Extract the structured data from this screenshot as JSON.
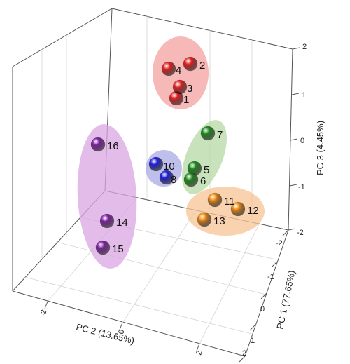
{
  "chart_data": {
    "type": "scatter",
    "projection": "3d",
    "axes": {
      "x": {
        "label": "PC 2 (13.65%)",
        "ticks": [
          "-2",
          "0",
          "2"
        ]
      },
      "y": {
        "label": "PC 1 (77.65%)",
        "ticks": [
          "-2",
          "-1",
          "0",
          "1",
          "2"
        ]
      },
      "z": {
        "label": "PC 3 (4.45%)",
        "ticks": [
          "-2",
          "-1",
          "0",
          "1",
          "2"
        ]
      }
    },
    "groups": [
      {
        "color": "#e01f1f",
        "ellipse_color": "#f4a0a0",
        "points": [
          "1",
          "2",
          "3",
          "4"
        ]
      },
      {
        "color": "#1a8a1a",
        "ellipse_color": "#b6d8a4",
        "points": [
          "5",
          "6",
          "7"
        ]
      },
      {
        "color": "#1f1fd6",
        "ellipse_color": "#a9a9e6",
        "points": [
          "8",
          "10"
        ]
      },
      {
        "color": "#f08a10",
        "ellipse_color": "#f7c394",
        "points": [
          "11",
          "12",
          "13"
        ]
      },
      {
        "color": "#7a1f9e",
        "ellipse_color": "#d9a6e3",
        "points": [
          "14",
          "15",
          "16"
        ]
      }
    ],
    "points": [
      {
        "label": "1",
        "group": 0
      },
      {
        "label": "2",
        "group": 0
      },
      {
        "label": "3",
        "group": 0
      },
      {
        "label": "4",
        "group": 0
      },
      {
        "label": "5",
        "group": 1
      },
      {
        "label": "6",
        "group": 1
      },
      {
        "label": "7",
        "group": 1
      },
      {
        "label": "8",
        "group": 2
      },
      {
        "label": "10",
        "group": 2
      },
      {
        "label": "11",
        "group": 3
      },
      {
        "label": "12",
        "group": 3
      },
      {
        "label": "13",
        "group": 3
      },
      {
        "label": "14",
        "group": 4
      },
      {
        "label": "15",
        "group": 4
      },
      {
        "label": "16",
        "group": 4
      }
    ],
    "grid": true,
    "legend": "none"
  }
}
